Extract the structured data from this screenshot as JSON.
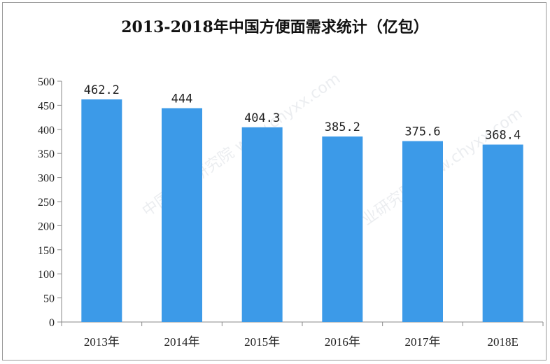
{
  "chart_data": {
    "type": "bar",
    "title": "2013-2018年中国方便面需求统计（亿包）",
    "categories": [
      "2013年",
      "2014年",
      "2015年",
      "2016年",
      "2017年",
      "2018E"
    ],
    "values": [
      462.2,
      444,
      404.3,
      385.2,
      375.6,
      368.4
    ],
    "value_labels": [
      "462.2",
      "444",
      "404.3",
      "385.2",
      "375.6",
      "368.4"
    ],
    "yticks": [
      0,
      50,
      100,
      150,
      200,
      250,
      300,
      350,
      400,
      450,
      500
    ],
    "ylim": [
      0,
      500
    ],
    "xlabel": "",
    "ylabel": "",
    "grid": false,
    "legend": "none",
    "bar_color": "#3c9ae8"
  }
}
